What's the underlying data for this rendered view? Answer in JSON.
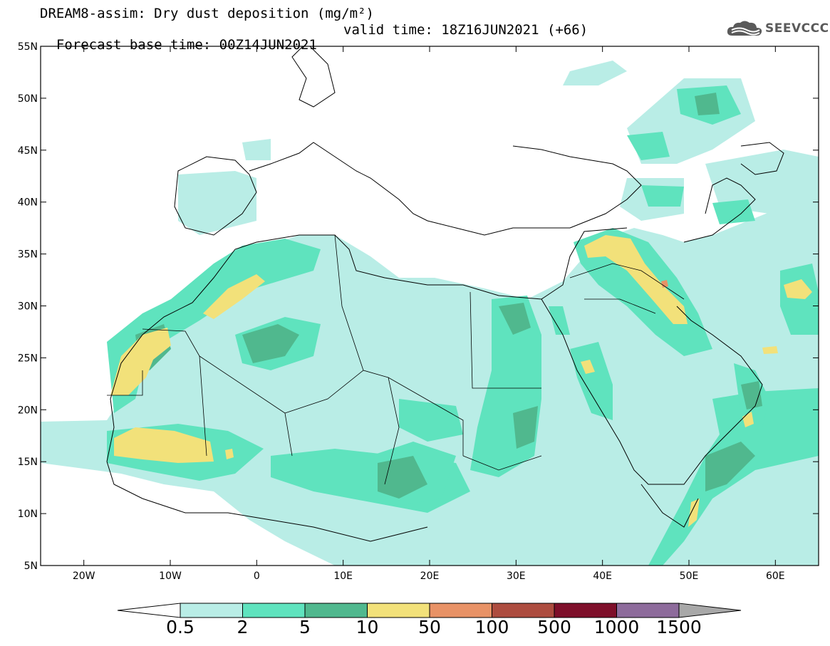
{
  "title": {
    "line1": "DREAM8-assim: Dry dust deposition (mg/m²)",
    "base_time": "Forecast base time: 00Z14JUN2021",
    "valid_time": "valid time: 18Z16JUN2021 (+66)"
  },
  "logo": {
    "text": "SEEVCCC",
    "icon": "cloud-logo-icon",
    "color": "#5a5a5a"
  },
  "map": {
    "lon_range": [
      -25,
      65
    ],
    "lat_range": [
      5,
      55
    ],
    "lat_ticks": [
      "5N",
      "10N",
      "15N",
      "20N",
      "25N",
      "30N",
      "35N",
      "40N",
      "45N",
      "50N",
      "55N"
    ],
    "lon_ticks": [
      "20W",
      "10W",
      "0",
      "10E",
      "20E",
      "30E",
      "40E",
      "50E",
      "60E"
    ]
  },
  "colorbar": {
    "labels": [
      "0.5",
      "2",
      "5",
      "10",
      "50",
      "100",
      "500",
      "1000",
      "1500"
    ],
    "colors": [
      "#b9ede6",
      "#5fe3be",
      "#50b88e",
      "#f2e17a",
      "#e89266",
      "#ad4c3f",
      "#7e0f2a",
      "#8d6b9b"
    ],
    "under_color": "#ffffff",
    "over_color": "#a8a8a8"
  }
}
